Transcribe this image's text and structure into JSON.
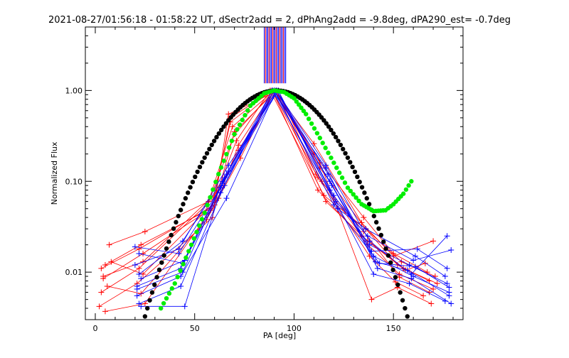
{
  "chart_data": {
    "type": "line",
    "title": "2021-08-27/01:56:18 - 01:58:22 UT, dSectr2add = 2, dPhAng2add = -9.8deg, dPA290_est= -0.7deg",
    "xlabel": "PA [deg]",
    "ylabel": "Normalized Flux",
    "x_scale": "linear",
    "y_scale": "log",
    "xlim": [
      -5,
      185
    ],
    "ylim": [
      0.003,
      5.0
    ],
    "x_ticks": [
      0,
      50,
      100,
      150
    ],
    "x_tick_labels": [
      "0",
      "50",
      "100",
      "150"
    ],
    "y_ticks": [
      0.01,
      0.1,
      1.0
    ],
    "y_tick_labels": [
      "0.01",
      "0.10",
      "1.00"
    ],
    "grid": false,
    "legend": "none",
    "colors": {
      "axes": "#000000",
      "red_series": "#ff0000",
      "blue_series": "#0000ff",
      "gaussian_fit": "#000000",
      "green_fit": "#00ee00"
    },
    "vertical_markers": {
      "x_min": 85,
      "x_max": 96,
      "y_bottom": 1.2,
      "note_colors": [
        "red",
        "blue"
      ]
    },
    "series": [
      {
        "color": "red",
        "x": [
          4,
          24,
          55,
          70,
          90,
          113,
          136,
          152,
          168
        ],
        "y": [
          0.0085,
          0.016,
          0.045,
          0.33,
          1.0,
          0.14,
          0.03,
          0.012,
          0.008
        ]
      },
      {
        "color": "red",
        "x": [
          3,
          22,
          60,
          68,
          89,
          112,
          137,
          153,
          170
        ],
        "y": [
          0.006,
          0.011,
          0.067,
          0.5,
          1.0,
          0.08,
          0.02,
          0.0095,
          0.0065
        ]
      },
      {
        "color": "red",
        "x": [
          5,
          23,
          58,
          72,
          91,
          110,
          135,
          150,
          167
        ],
        "y": [
          0.012,
          0.02,
          0.05,
          0.22,
          1.0,
          0.2,
          0.04,
          0.016,
          0.01
        ]
      },
      {
        "color": "red",
        "x": [
          7,
          25,
          57,
          69,
          90,
          114,
          134,
          155,
          172
        ],
        "y": [
          0.02,
          0.028,
          0.06,
          0.4,
          1.0,
          0.1,
          0.025,
          0.011,
          0.0075
        ]
      },
      {
        "color": "red",
        "x": [
          2,
          21,
          59,
          67,
          92,
          111,
          138,
          151,
          165
        ],
        "y": [
          0.0042,
          0.0075,
          0.04,
          0.55,
          1.0,
          0.12,
          0.015,
          0.0078,
          0.0055
        ]
      },
      {
        "color": "red",
        "x": [
          4,
          24,
          61,
          71,
          88,
          115,
          136,
          154,
          171
        ],
        "y": [
          0.009,
          0.013,
          0.075,
          0.28,
          1.0,
          0.07,
          0.03,
          0.013,
          0.009
        ]
      },
      {
        "color": "red",
        "x": [
          6,
          23,
          56,
          73,
          90,
          113,
          139,
          152,
          169
        ],
        "y": [
          0.007,
          0.0058,
          0.038,
          0.18,
          1.0,
          0.16,
          0.005,
          0.0068,
          0.0045
        ]
      },
      {
        "color": "red",
        "x": [
          3,
          22,
          60,
          70,
          91,
          116,
          137,
          156,
          166
        ],
        "y": [
          0.011,
          0.018,
          0.055,
          0.35,
          1.0,
          0.06,
          0.022,
          0.0105,
          0.0125
        ]
      },
      {
        "color": "red",
        "x": [
          5,
          25,
          58,
          68,
          89,
          112,
          135,
          153,
          168
        ],
        "y": [
          0.0037,
          0.0045,
          0.048,
          0.45,
          1.0,
          0.11,
          0.028,
          0.0088,
          0.006
        ]
      },
      {
        "color": "red",
        "x": [
          8,
          24,
          62,
          72,
          90,
          110,
          134,
          150,
          170
        ],
        "y": [
          0.013,
          0.0095,
          0.065,
          0.25,
          1.0,
          0.26,
          0.035,
          0.015,
          0.022
        ]
      },
      {
        "color": "blue",
        "x": [
          22,
          43,
          65,
          90,
          118,
          140,
          160,
          178
        ],
        "y": [
          0.0045,
          0.007,
          0.09,
          1.0,
          0.1,
          0.015,
          0.009,
          0.006
        ]
      },
      {
        "color": "blue",
        "x": [
          21,
          44,
          66,
          91,
          120,
          138,
          158,
          177
        ],
        "y": [
          0.0065,
          0.01,
          0.12,
          1.0,
          0.07,
          0.02,
          0.012,
          0.0075
        ]
      },
      {
        "color": "blue",
        "x": [
          23,
          45,
          63,
          89,
          116,
          142,
          159,
          179
        ],
        "y": [
          0.0085,
          0.0135,
          0.075,
          1.0,
          0.14,
          0.011,
          0.0085,
          0.0045
        ]
      },
      {
        "color": "blue",
        "x": [
          20,
          42,
          67,
          92,
          122,
          136,
          161,
          176
        ],
        "y": [
          0.012,
          0.018,
          0.15,
          1.0,
          0.05,
          0.03,
          0.015,
          0.009
        ]
      },
      {
        "color": "blue",
        "x": [
          22,
          44,
          64,
          90,
          119,
          141,
          157,
          178
        ],
        "y": [
          0.016,
          0.0125,
          0.1,
          1.0,
          0.09,
          0.013,
          0.0105,
          0.0055
        ]
      },
      {
        "color": "blue",
        "x": [
          21,
          43,
          66,
          91,
          117,
          139,
          162,
          177
        ],
        "y": [
          0.0055,
          0.009,
          0.065,
          1.0,
          0.12,
          0.017,
          0.018,
          0.011
        ]
      },
      {
        "color": "blue",
        "x": [
          23,
          45,
          65,
          89,
          121,
          137,
          160,
          179
        ],
        "y": [
          0.0042,
          0.0042,
          0.11,
          1.0,
          0.06,
          0.025,
          0.0135,
          0.0175
        ]
      },
      {
        "color": "blue",
        "x": [
          20,
          42,
          63,
          92,
          118,
          140,
          158,
          176
        ],
        "y": [
          0.019,
          0.016,
          0.085,
          1.0,
          0.08,
          0.0095,
          0.0075,
          0.0048
        ]
      },
      {
        "color": "blue",
        "x": [
          22,
          44,
          67,
          90,
          120,
          143,
          161,
          178
        ],
        "y": [
          0.0095,
          0.022,
          0.13,
          1.0,
          0.055,
          0.0125,
          0.0115,
          0.0068
        ]
      },
      {
        "color": "blue",
        "x": [
          21,
          43,
          64,
          91,
          116,
          138,
          159,
          177
        ],
        "y": [
          0.007,
          0.011,
          0.095,
          1.0,
          0.15,
          0.022,
          0.0095,
          0.025
        ]
      }
    ],
    "gaussian_fit": {
      "color": "black",
      "center": 91,
      "sigma": 19.5,
      "x_range": [
        25,
        157
      ]
    },
    "green_fit": {
      "color": "green",
      "x": [
        33,
        40,
        47,
        55,
        62,
        70,
        78,
        85,
        90,
        95,
        100,
        106,
        113,
        120,
        127,
        134,
        140,
        146,
        150,
        155,
        159
      ],
      "y": [
        0.004,
        0.0075,
        0.017,
        0.045,
        0.12,
        0.33,
        0.68,
        0.93,
        1.0,
        0.96,
        0.82,
        0.55,
        0.3,
        0.16,
        0.085,
        0.056,
        0.047,
        0.048,
        0.056,
        0.073,
        0.1
      ]
    }
  }
}
